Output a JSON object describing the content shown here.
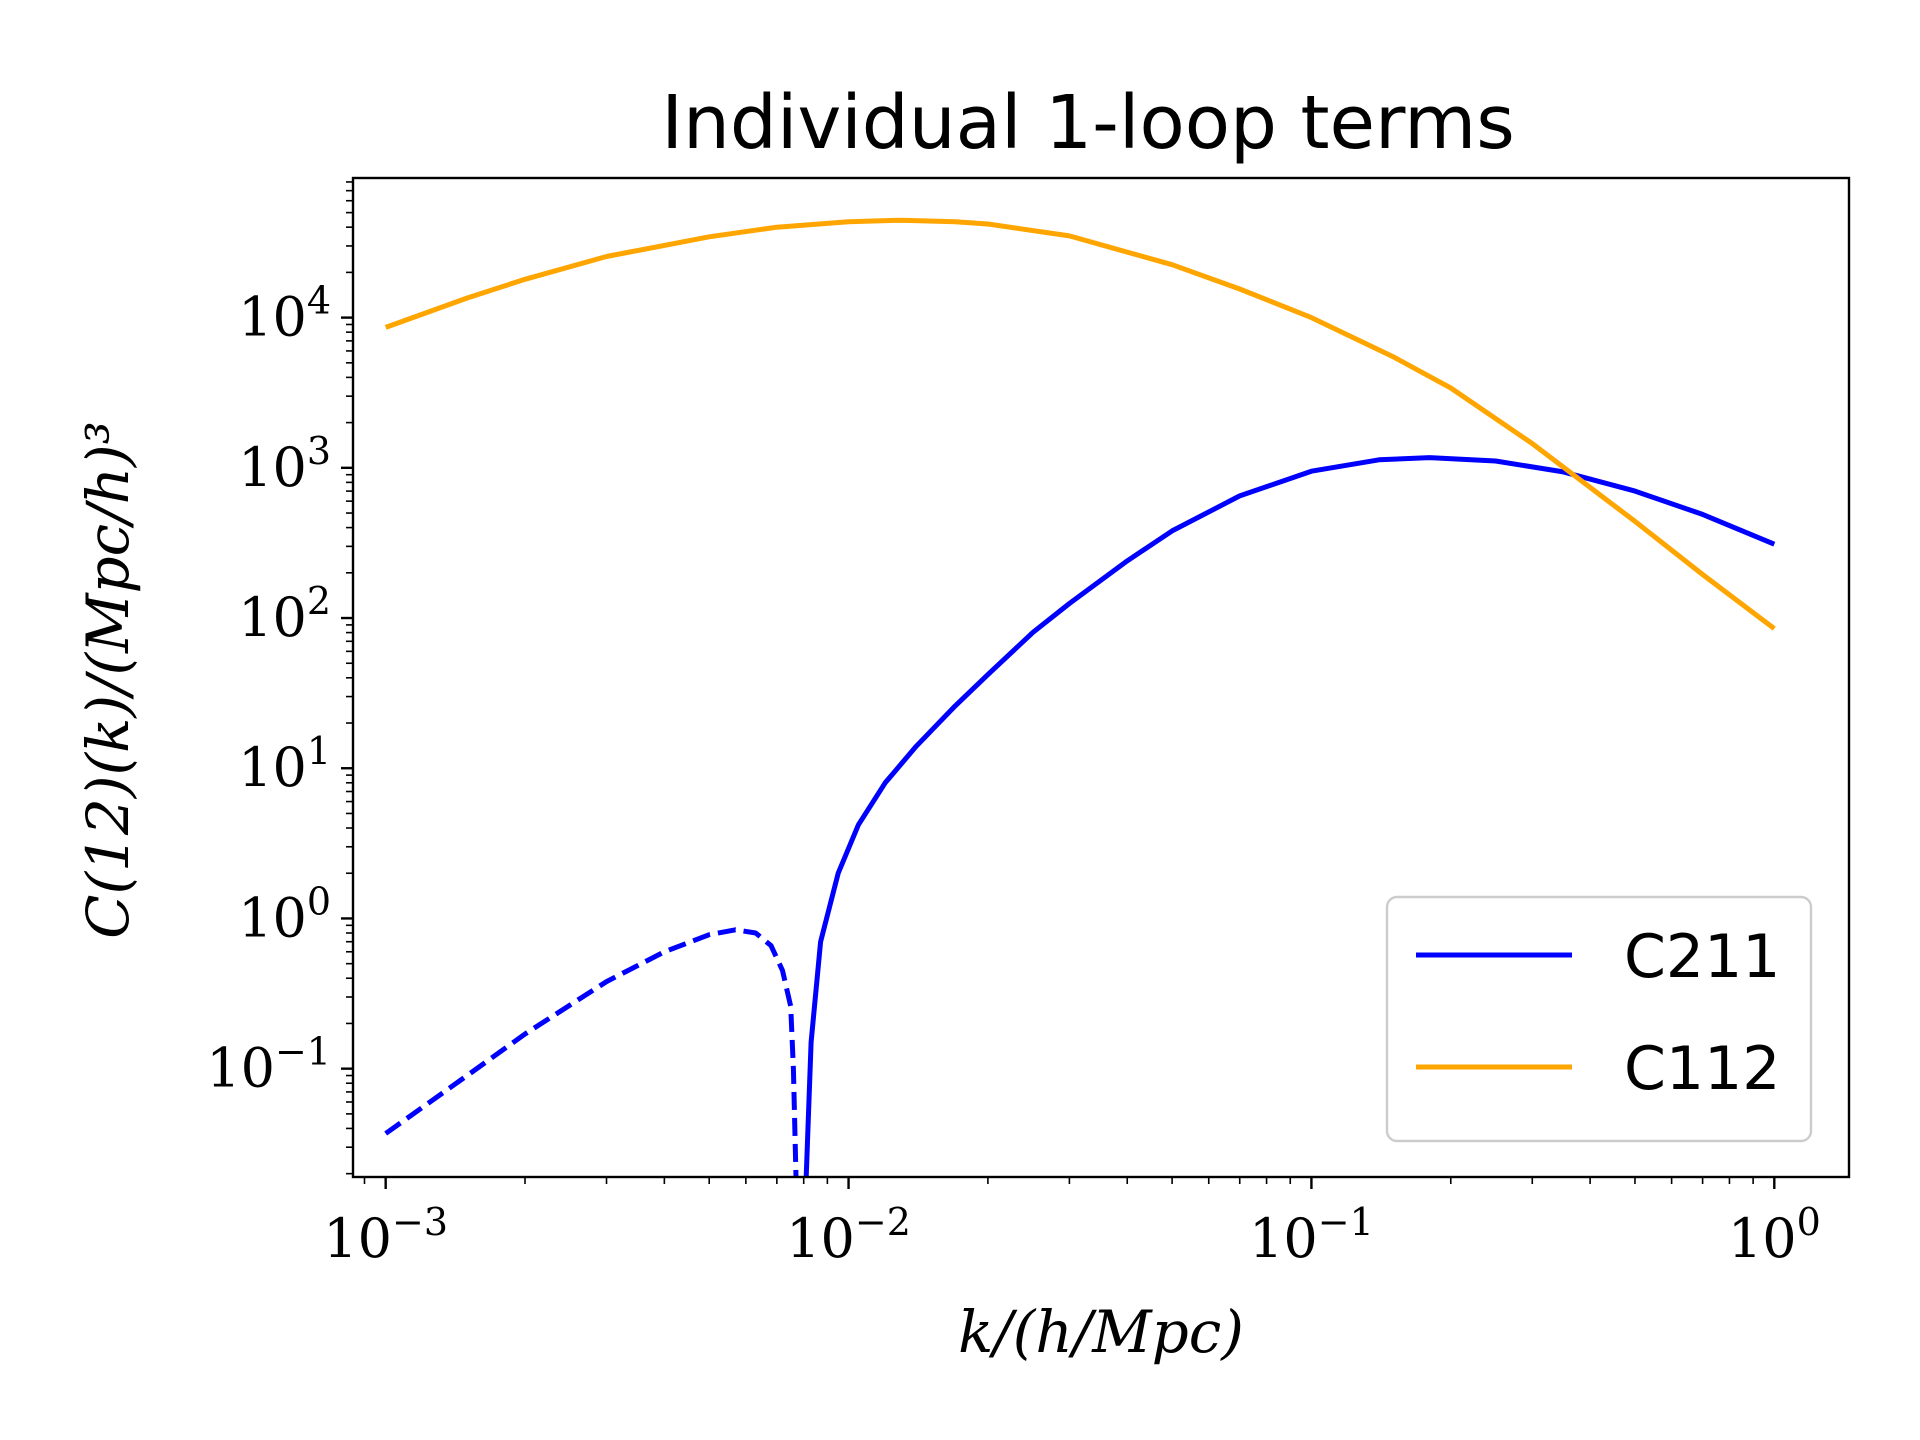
{
  "chart_data": {
    "type": "line",
    "title": "Individual 1-loop terms",
    "xlabel": "k/(h/Mpc)",
    "ylabel": "C(12)(k)/(Mpc/h)³",
    "xscale": "log",
    "yscale": "log",
    "xlim": [
      0.00085,
      1.45
    ],
    "ylim": [
      0.019,
      85000
    ],
    "grid": false,
    "legend_position": "lower right",
    "x_tick_labels": [
      {
        "base": "10",
        "exp": "−3",
        "value": 0.001
      },
      {
        "base": "10",
        "exp": "−2",
        "value": 0.01
      },
      {
        "base": "10",
        "exp": "−1",
        "value": 0.1
      },
      {
        "base": "10",
        "exp": "0",
        "value": 1
      }
    ],
    "y_tick_labels": [
      {
        "base": "10",
        "exp": "−1",
        "value": 0.1
      },
      {
        "base": "10",
        "exp": "0",
        "value": 1
      },
      {
        "base": "10",
        "exp": "1",
        "value": 10
      },
      {
        "base": "10",
        "exp": "2",
        "value": 100
      },
      {
        "base": "10",
        "exp": "3",
        "value": 1000
      },
      {
        "base": "10",
        "exp": "4",
        "value": 10000
      }
    ],
    "series": [
      {
        "name": "C211",
        "color": "#0000ff",
        "style": "solid",
        "x": [
          0.0081,
          0.0083,
          0.0087,
          0.0095,
          0.0105,
          0.012,
          0.014,
          0.017,
          0.02,
          0.025,
          0.03,
          0.04,
          0.05,
          0.07,
          0.1,
          0.14,
          0.18,
          0.25,
          0.35,
          0.5,
          0.7,
          1.0
        ],
        "y": [
          0.019,
          0.15,
          0.7,
          2.0,
          4.2,
          8.0,
          14,
          26,
          42,
          80,
          125,
          240,
          380,
          650,
          950,
          1130,
          1170,
          1110,
          940,
          700,
          490,
          310
        ]
      },
      {
        "name": "",
        "color": "#0000ff",
        "style": "dashed",
        "x": [
          0.001,
          0.0015,
          0.002,
          0.003,
          0.004,
          0.005,
          0.0057,
          0.0063,
          0.0068,
          0.0072,
          0.0075,
          0.0076,
          0.0077
        ],
        "y": [
          0.037,
          0.09,
          0.17,
          0.38,
          0.6,
          0.78,
          0.84,
          0.8,
          0.66,
          0.45,
          0.26,
          0.1,
          0.019
        ]
      },
      {
        "name": "C112",
        "color": "#ffa500",
        "style": "solid",
        "x": [
          0.001,
          0.0015,
          0.002,
          0.003,
          0.005,
          0.007,
          0.01,
          0.013,
          0.017,
          0.02,
          0.03,
          0.05,
          0.07,
          0.1,
          0.15,
          0.2,
          0.3,
          0.5,
          0.7,
          1.0
        ],
        "y": [
          8600,
          13500,
          18000,
          25500,
          34500,
          40000,
          43500,
          44500,
          43500,
          42000,
          35000,
          22500,
          15500,
          10000,
          5500,
          3400,
          1450,
          440,
          195,
          85
        ]
      }
    ]
  }
}
